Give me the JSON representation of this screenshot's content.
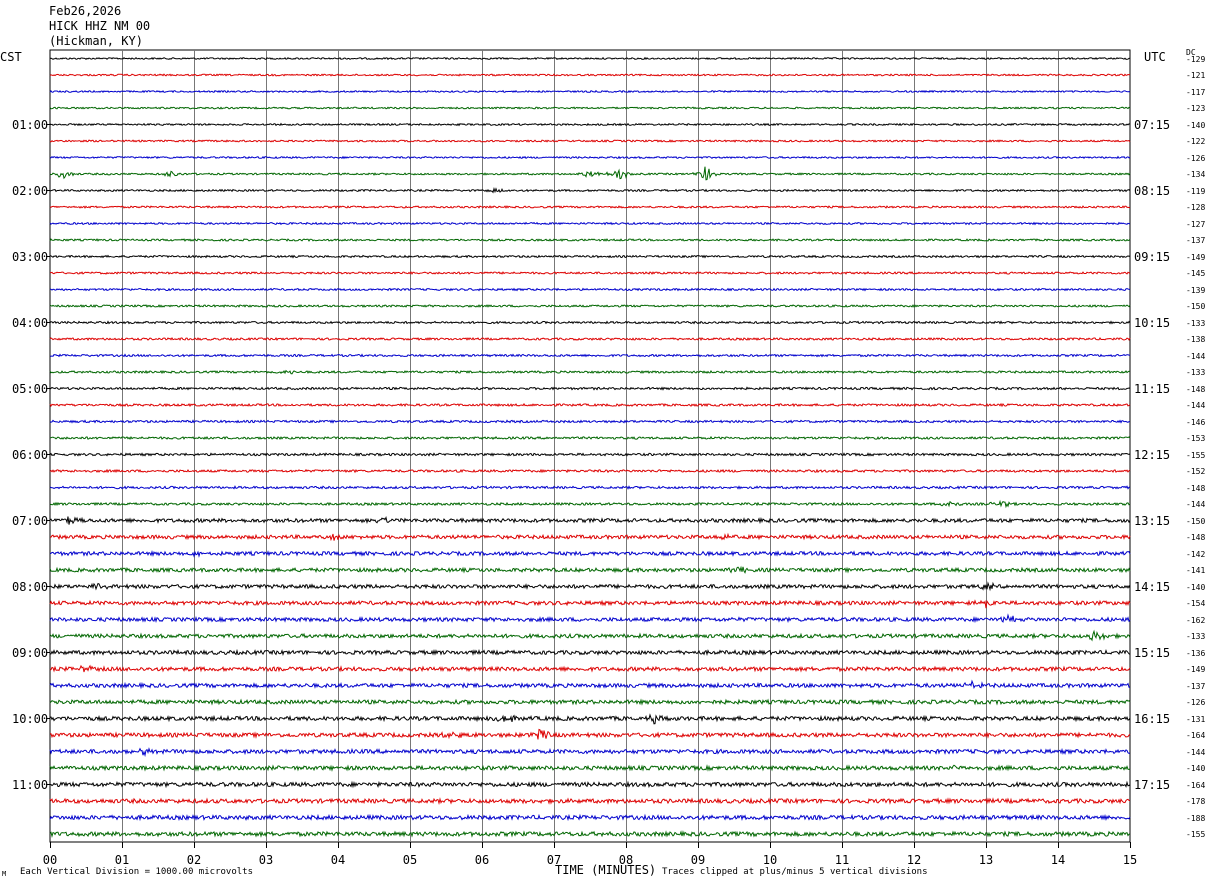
{
  "header": {
    "date": "Feb26,2026",
    "station": "HICK HHZ NM 00",
    "location": "(Hickman, KY)"
  },
  "left_corner": "CST",
  "right_corner": "UTC",
  "dc_header": "DC",
  "footer": {
    "mark": "M",
    "scale_note": "Each Vertical Division = 1000.00 microvolts",
    "xaxis_title": "TIME (MINUTES)",
    "clip_note": "Traces clipped at plus/minus 5 vertical divisions"
  },
  "colors": {
    "cycle": [
      "#000000",
      "#dd0000",
      "#0000cc",
      "#006600"
    ],
    "grid": "#777777"
  },
  "chart_data": {
    "type": "line",
    "x_range": [
      0,
      15
    ],
    "x_ticks": [
      "00",
      "01",
      "02",
      "03",
      "04",
      "05",
      "06",
      "07",
      "08",
      "09",
      "10",
      "11",
      "12",
      "13",
      "14",
      "15"
    ],
    "left_time_labels": [
      "01:00",
      "02:00",
      "03:00",
      "04:00",
      "05:00",
      "06:00",
      "07:00",
      "08:00",
      "09:00",
      "10:00",
      "11:00"
    ],
    "right_time_labels": [
      "07:15",
      "08:15",
      "09:15",
      "10:15",
      "11:15",
      "12:15",
      "13:15",
      "14:15",
      "15:15",
      "16:15",
      "17:15"
    ],
    "dc_offsets": [
      "-129",
      "-121",
      "-117",
      "-123",
      "-140",
      "-122",
      "-126",
      "-134",
      "-119",
      "-128",
      "-127",
      "-137",
      "-149",
      "-145",
      "-139",
      "-150",
      "-133",
      "-138",
      "-144",
      "-133",
      "-148",
      "-144",
      "-146",
      "-153",
      "-155",
      "-152",
      "-148",
      "-144",
      "-150",
      "-148",
      "-142",
      "-141",
      "-140",
      "-154",
      "-162",
      "-133",
      "-136",
      "-149",
      "-137",
      "-126",
      "-131",
      "-164",
      "-144",
      "-140",
      "-164",
      "-178",
      "-188",
      "-155"
    ],
    "trace_count": 48,
    "events": [
      {
        "trace": 7,
        "minute": 0.2,
        "amp": 4
      },
      {
        "trace": 7,
        "minute": 1.7,
        "amp": 3
      },
      {
        "trace": 7,
        "minute": 7.5,
        "amp": 3
      },
      {
        "trace": 7,
        "minute": 7.9,
        "amp": 5
      },
      {
        "trace": 7,
        "minute": 9.1,
        "amp": 7
      },
      {
        "trace": 8,
        "minute": 6.2,
        "amp": 2
      },
      {
        "trace": 19,
        "minute": 3.3,
        "amp": 2
      },
      {
        "trace": 27,
        "minute": 12.5,
        "amp": 3
      },
      {
        "trace": 27,
        "minute": 13.2,
        "amp": 3
      },
      {
        "trace": 28,
        "minute": 0.3,
        "amp": 4
      },
      {
        "trace": 28,
        "minute": 4.6,
        "amp": 3
      },
      {
        "trace": 29,
        "minute": 4.0,
        "amp": 3
      },
      {
        "trace": 29,
        "minute": 9.4,
        "amp": 3
      },
      {
        "trace": 30,
        "minute": 2.1,
        "amp": 3
      },
      {
        "trace": 31,
        "minute": 9.6,
        "amp": 3
      },
      {
        "trace": 32,
        "minute": 0.7,
        "amp": 2
      },
      {
        "trace": 32,
        "minute": 13.0,
        "amp": 3
      },
      {
        "trace": 33,
        "minute": 13.0,
        "amp": 4
      },
      {
        "trace": 34,
        "minute": 13.3,
        "amp": 3
      },
      {
        "trace": 35,
        "minute": 14.5,
        "amp": 5
      },
      {
        "trace": 37,
        "minute": 0.5,
        "amp": 3
      },
      {
        "trace": 38,
        "minute": 12.8,
        "amp": 3
      },
      {
        "trace": 40,
        "minute": 6.3,
        "amp": 4
      },
      {
        "trace": 40,
        "minute": 8.4,
        "amp": 4
      },
      {
        "trace": 41,
        "minute": 5.6,
        "amp": 3
      },
      {
        "trace": 41,
        "minute": 6.8,
        "amp": 5
      },
      {
        "trace": 42,
        "minute": 1.3,
        "amp": 3
      },
      {
        "trace": 43,
        "minute": 12.6,
        "amp": 2
      }
    ]
  }
}
